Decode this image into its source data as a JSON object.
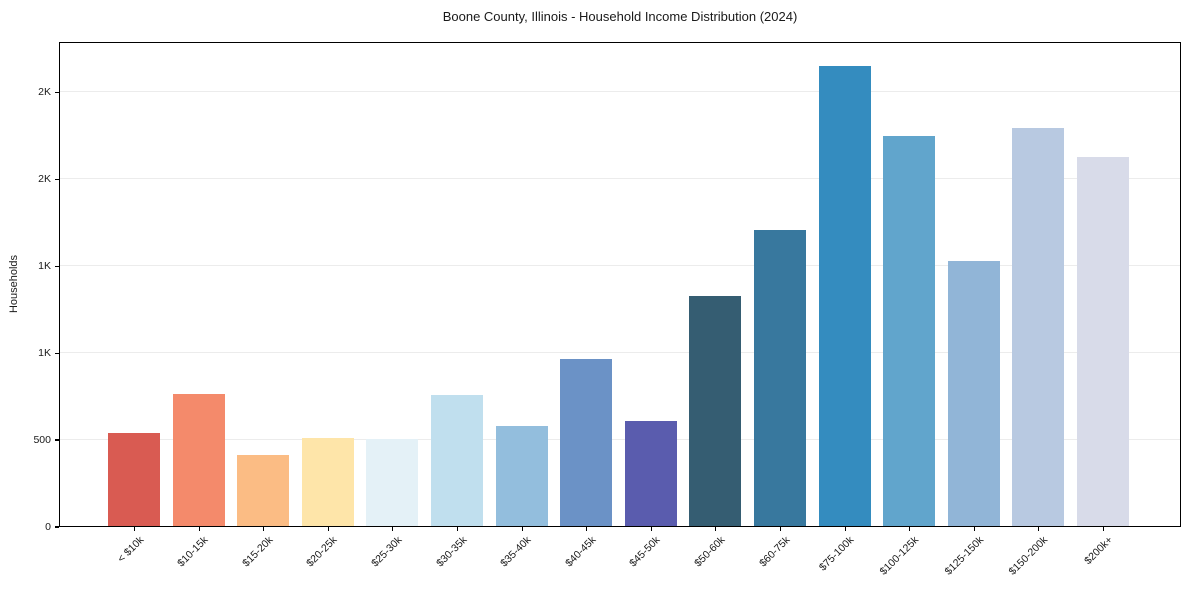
{
  "chart_data": {
    "type": "bar",
    "title": "Boone County, Illinois - Household Income Distribution (2024)",
    "xlabel": "",
    "ylabel": "Households",
    "categories": [
      "< $10k",
      "$10-15k",
      "$15-20k",
      "$20-25k",
      "$25-30k",
      "$30-35k",
      "$35-40k",
      "$40-45k",
      "$45-50k",
      "$50-60k",
      "$60-75k",
      "$75-100k",
      "$100-125k",
      "$125-150k",
      "$150-200k",
      "$200k+"
    ],
    "values": [
      535,
      760,
      410,
      505,
      500,
      755,
      575,
      960,
      605,
      1325,
      1705,
      2645,
      2245,
      1525,
      2290,
      2125
    ],
    "bar_colors": [
      "#d95b52",
      "#f48a6b",
      "#fbbc84",
      "#fee5a9",
      "#e4f1f7",
      "#c0dfee",
      "#93bedd",
      "#6b92c6",
      "#5a5cae",
      "#355d72",
      "#38789e",
      "#348cbf",
      "#61a5cc",
      "#91b5d7",
      "#b8c9e1",
      "#d8dbe9"
    ],
    "ylim": [
      0,
      2790
    ],
    "yticks": [
      {
        "value": 0,
        "label": "0"
      },
      {
        "value": 500,
        "label": "500"
      },
      {
        "value": 1000,
        "label": "1K"
      },
      {
        "value": 1500,
        "label": "1K"
      },
      {
        "value": 2000,
        "label": "2K"
      },
      {
        "value": 2500,
        "label": "2K"
      }
    ],
    "grid": "horizontal",
    "legend": "none",
    "x_tick_rotation_deg": 45
  },
  "colors": {
    "background": "#ffffff",
    "spine": "#000000",
    "grid": "#ececec",
    "text": "#1a1a1a"
  }
}
